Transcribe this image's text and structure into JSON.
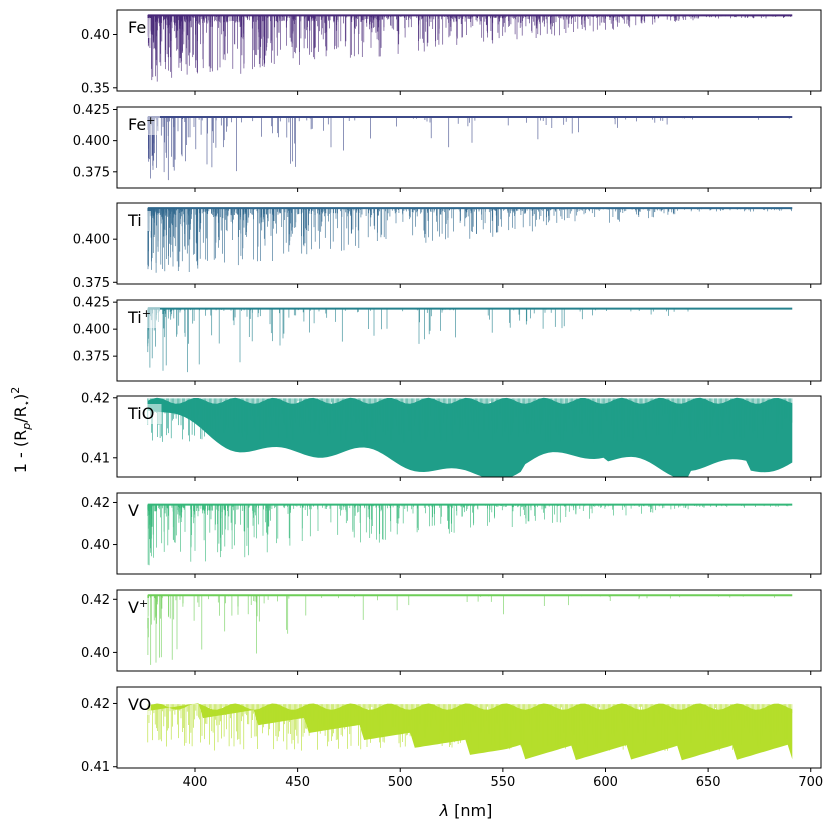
{
  "chart_data": {
    "type": "line",
    "xlabel": "λ [nm]",
    "ylabel": "1 - (R_p/R_*)²",
    "xlim": [
      362,
      705
    ],
    "x_ticks": [
      400,
      450,
      500,
      550,
      600,
      650,
      700
    ],
    "x_tick_labels": [
      "400",
      "450",
      "500",
      "550",
      "600",
      "650",
      "700"
    ],
    "x_range_data": [
      377,
      691
    ],
    "panels": [
      {
        "species": "Fe",
        "label": "Fe",
        "sup": "",
        "color": "#482878",
        "baseline": 0.418,
        "ylim": [
          0.347,
          0.423
        ],
        "yticks": [
          0.35,
          0.4
        ],
        "ytick_labels": [
          "0.35",
          "0.40"
        ],
        "style": "dense",
        "density": 0.95,
        "minval": 0.352
      },
      {
        "species": "Fe+",
        "label": "Fe",
        "sup": "+",
        "color": "#3e4a89",
        "baseline": 0.419,
        "ylim": [
          0.362,
          0.427
        ],
        "yticks": [
          0.375,
          0.4,
          0.425
        ],
        "ytick_labels": [
          "0.375",
          "0.400",
          "0.425"
        ],
        "style": "sparse",
        "density": 0.18,
        "minval": 0.365
      },
      {
        "species": "Ti",
        "label": "Ti",
        "sup": "",
        "color": "#31688e",
        "baseline": 0.418,
        "ylim": [
          0.374,
          0.421
        ],
        "yticks": [
          0.375,
          0.4
        ],
        "ytick_labels": [
          "0.375",
          "0.400"
        ],
        "style": "dense",
        "density": 0.8,
        "minval": 0.377
      },
      {
        "species": "Ti+",
        "label": "Ti",
        "sup": "+",
        "color": "#26828e",
        "baseline": 0.419,
        "ylim": [
          0.352,
          0.427
        ],
        "yticks": [
          0.375,
          0.4,
          0.425
        ],
        "ytick_labels": [
          "0.375",
          "0.400",
          "0.425"
        ],
        "style": "sparse",
        "density": 0.22,
        "minval": 0.356
      },
      {
        "species": "TiO",
        "label": "TiO",
        "sup": "",
        "color": "#1f9e89",
        "baseline": 0.4195,
        "ylim": [
          0.4068,
          0.4203
        ],
        "yticks": [
          0.41,
          0.42
        ],
        "ytick_labels": [
          "0.41",
          "0.42"
        ],
        "style": "band",
        "density": 1.0,
        "minval": 0.4085
      },
      {
        "species": "V",
        "label": "V",
        "sup": "",
        "color": "#35b779",
        "baseline": 0.419,
        "ylim": [
          0.386,
          0.4245
        ],
        "yticks": [
          0.4,
          0.42
        ],
        "ytick_labels": [
          "0.40",
          "0.42"
        ],
        "style": "dense",
        "density": 0.55,
        "minval": 0.389
      },
      {
        "species": "V+",
        "label": "V",
        "sup": "+",
        "color": "#6ece58",
        "baseline": 0.4215,
        "ylim": [
          0.393,
          0.4235
        ],
        "yticks": [
          0.4,
          0.42
        ],
        "ytick_labels": [
          "0.40",
          "0.42"
        ],
        "style": "sparse",
        "density": 0.1,
        "minval": 0.394
      },
      {
        "species": "VO",
        "label": "VO",
        "sup": "",
        "color": "#b5de2b",
        "baseline": 0.4195,
        "ylim": [
          0.4098,
          0.4226
        ],
        "yticks": [
          0.41,
          0.42
        ],
        "ytick_labels": [
          "0.41",
          "0.42"
        ],
        "style": "band",
        "density": 1.0,
        "minval": 0.4105
      }
    ]
  }
}
